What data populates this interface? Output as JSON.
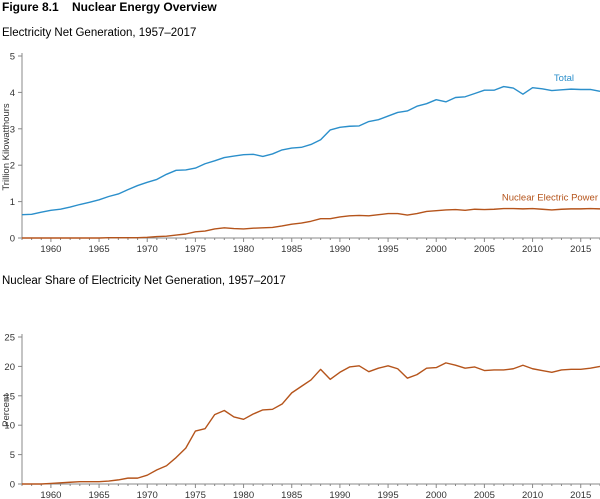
{
  "figure_title": "Figure 8.1    Nuclear Energy Overview",
  "colors": {
    "total": "#2b8fcb",
    "nuclear": "#b5541b",
    "axis": "#888888",
    "text": "#333333"
  },
  "chart_data": [
    {
      "type": "line",
      "title": "Electricity Net Generation, 1957–2017",
      "xlabel": "",
      "ylabel": "Trillion Kilowatthours",
      "xlim": [
        1957,
        2017
      ],
      "ylim": [
        0,
        5
      ],
      "x_ticks": [
        1960,
        1965,
        1970,
        1975,
        1980,
        1985,
        1990,
        1995,
        2000,
        2005,
        2010,
        2015
      ],
      "y_ticks": [
        0,
        1,
        2,
        3,
        4,
        5
      ],
      "grid": false,
      "x": [
        1957,
        1958,
        1959,
        1960,
        1961,
        1962,
        1963,
        1964,
        1965,
        1966,
        1967,
        1968,
        1969,
        1970,
        1971,
        1972,
        1973,
        1974,
        1975,
        1976,
        1977,
        1978,
        1979,
        1980,
        1981,
        1982,
        1983,
        1984,
        1985,
        1986,
        1987,
        1988,
        1989,
        1990,
        1991,
        1992,
        1993,
        1994,
        1995,
        1996,
        1997,
        1998,
        1999,
        2000,
        2001,
        2002,
        2003,
        2004,
        2005,
        2006,
        2007,
        2008,
        2009,
        2010,
        2011,
        2012,
        2013,
        2014,
        2015,
        2016,
        2017
      ],
      "series": [
        {
          "name": "Total",
          "color": "#2b8fcb",
          "values": [
            0.64,
            0.65,
            0.71,
            0.76,
            0.79,
            0.85,
            0.92,
            0.98,
            1.05,
            1.14,
            1.21,
            1.33,
            1.44,
            1.53,
            1.61,
            1.75,
            1.86,
            1.87,
            1.92,
            2.04,
            2.12,
            2.21,
            2.25,
            2.29,
            2.3,
            2.24,
            2.31,
            2.42,
            2.47,
            2.49,
            2.57,
            2.7,
            2.97,
            3.04,
            3.07,
            3.08,
            3.2,
            3.25,
            3.35,
            3.45,
            3.49,
            3.62,
            3.69,
            3.8,
            3.74,
            3.86,
            3.88,
            3.97,
            4.06,
            4.06,
            4.16,
            4.12,
            3.95,
            4.13,
            4.1,
            4.05,
            4.07,
            4.09,
            4.08,
            4.08,
            4.03
          ]
        },
        {
          "name": "Nuclear Electric Power",
          "color": "#b5541b",
          "values": [
            0.0,
            0.0,
            0.0,
            0.0,
            0.0,
            0.0,
            0.0,
            0.0,
            0.0,
            0.01,
            0.01,
            0.01,
            0.01,
            0.02,
            0.04,
            0.05,
            0.08,
            0.11,
            0.17,
            0.19,
            0.25,
            0.28,
            0.26,
            0.25,
            0.27,
            0.28,
            0.29,
            0.33,
            0.38,
            0.41,
            0.46,
            0.53,
            0.53,
            0.58,
            0.61,
            0.62,
            0.61,
            0.64,
            0.67,
            0.67,
            0.63,
            0.67,
            0.73,
            0.75,
            0.77,
            0.78,
            0.76,
            0.79,
            0.78,
            0.79,
            0.81,
            0.81,
            0.8,
            0.81,
            0.79,
            0.77,
            0.79,
            0.8,
            0.8,
            0.81,
            0.8
          ]
        }
      ]
    },
    {
      "type": "line",
      "title": "Nuclear Share of Electricity Net Generation, 1957–2017",
      "xlabel": "",
      "ylabel": "Percent",
      "xlim": [
        1957,
        2017
      ],
      "ylim": [
        0,
        25
      ],
      "x_ticks": [
        1960,
        1965,
        1970,
        1975,
        1980,
        1985,
        1990,
        1995,
        2000,
        2005,
        2010,
        2015
      ],
      "y_ticks": [
        0,
        5,
        10,
        15,
        20,
        25
      ],
      "grid": false,
      "x": [
        1957,
        1958,
        1959,
        1960,
        1961,
        1962,
        1963,
        1964,
        1965,
        1966,
        1967,
        1968,
        1969,
        1970,
        1971,
        1972,
        1973,
        1974,
        1975,
        1976,
        1977,
        1978,
        1979,
        1980,
        1981,
        1982,
        1983,
        1984,
        1985,
        1986,
        1987,
        1988,
        1989,
        1990,
        1991,
        1992,
        1993,
        1994,
        1995,
        1996,
        1997,
        1998,
        1999,
        2000,
        2001,
        2002,
        2003,
        2004,
        2005,
        2006,
        2007,
        2008,
        2009,
        2010,
        2011,
        2012,
        2013,
        2014,
        2015,
        2016,
        2017
      ],
      "series": [
        {
          "color": "#b5541b",
          "values": [
            0.0,
            0.0,
            0.0,
            0.1,
            0.2,
            0.3,
            0.4,
            0.4,
            0.4,
            0.5,
            0.7,
            1.0,
            1.0,
            1.5,
            2.4,
            3.1,
            4.5,
            6.1,
            9.0,
            9.4,
            11.8,
            12.5,
            11.4,
            11.0,
            11.9,
            12.6,
            12.7,
            13.6,
            15.5,
            16.6,
            17.7,
            19.5,
            17.8,
            19.0,
            19.9,
            20.1,
            19.1,
            19.7,
            20.1,
            19.6,
            18.0,
            18.6,
            19.7,
            19.8,
            20.6,
            20.2,
            19.7,
            19.9,
            19.3,
            19.4,
            19.4,
            19.6,
            20.2,
            19.6,
            19.3,
            19.0,
            19.4,
            19.5,
            19.5,
            19.7,
            20.0
          ]
        }
      ]
    }
  ]
}
